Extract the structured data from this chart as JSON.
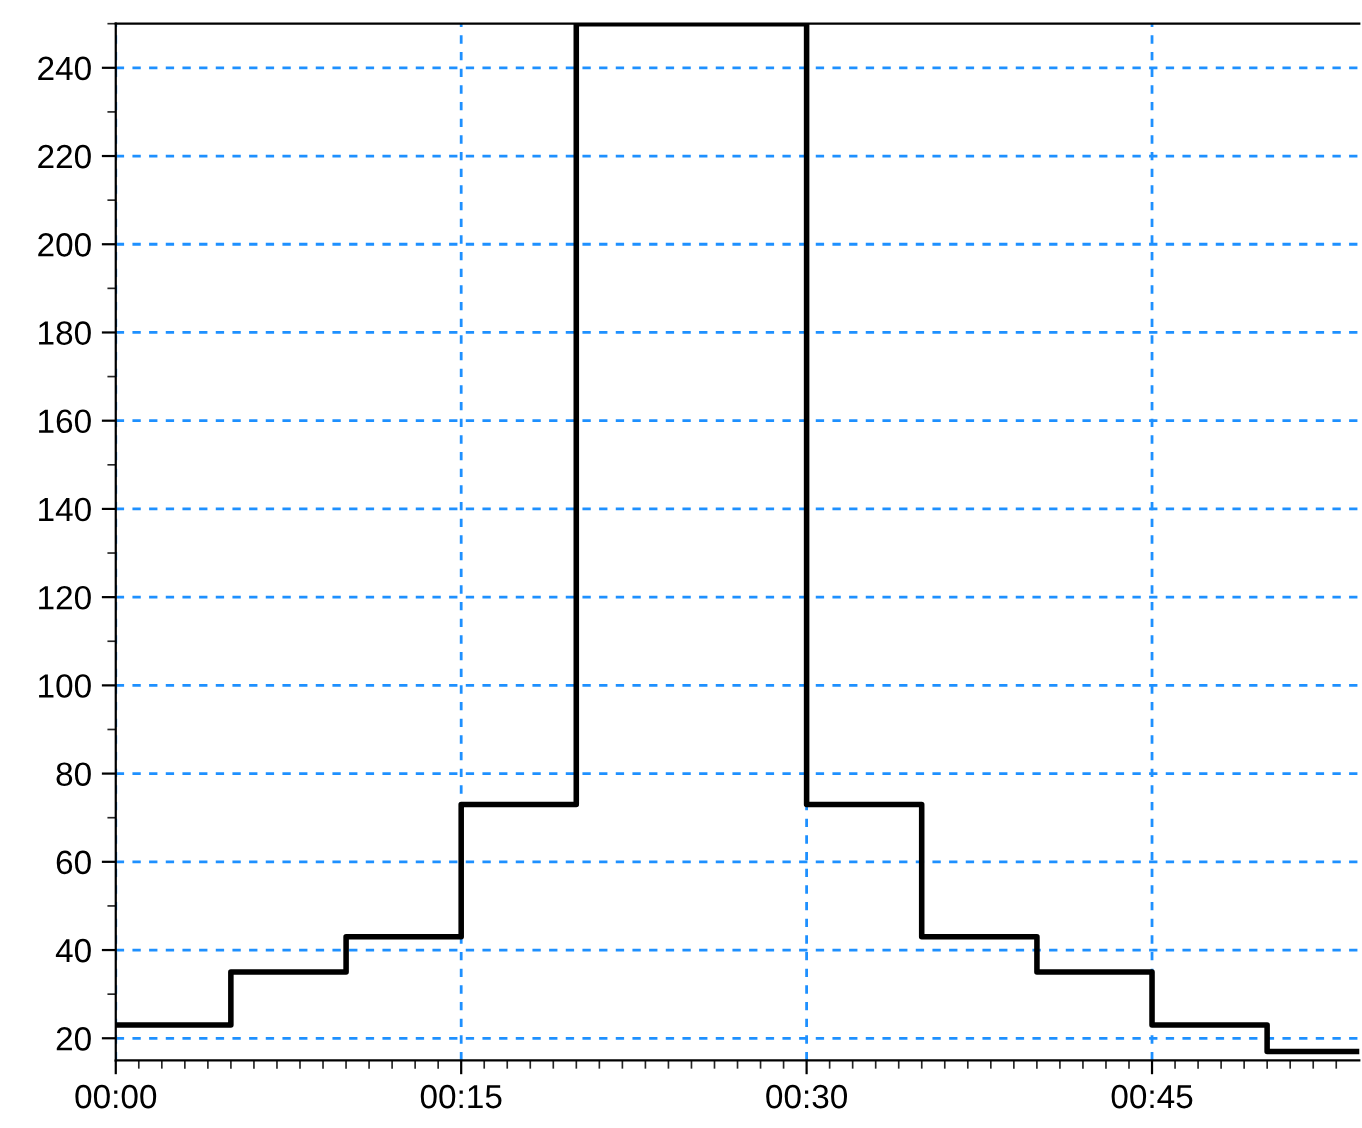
{
  "chart_data": {
    "type": "step",
    "x": [
      0,
      0.0833,
      0.1667,
      0.25,
      0.3333,
      0.5,
      0.5833,
      0.6667,
      0.75,
      0.8333,
      0.9
    ],
    "series": [
      {
        "color": "#000000",
        "values": [
          23,
          35,
          43,
          73,
          250,
          73,
          43,
          35,
          23,
          17,
          17
        ]
      }
    ],
    "xlim": [
      0,
      0.9
    ],
    "ylim": [
      15,
      250
    ],
    "xticks": [
      {
        "value": 0,
        "label": "00:00"
      },
      {
        "value": 0.25,
        "label": "00:15"
      },
      {
        "value": 0.5,
        "label": "00:30"
      },
      {
        "value": 0.75,
        "label": "00:45"
      }
    ],
    "yticks": [
      20,
      40,
      60,
      80,
      100,
      120,
      140,
      160,
      180,
      200,
      220,
      240
    ],
    "grid": true,
    "marker": "none",
    "line_style": "solid",
    "legend": false
  }
}
